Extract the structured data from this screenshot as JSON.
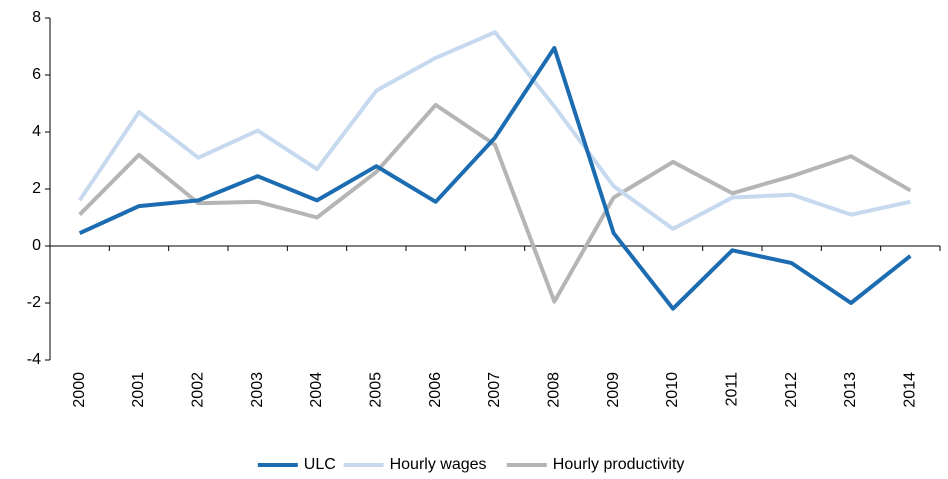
{
  "chart_data": {
    "type": "line",
    "categories": [
      "2000",
      "2001",
      "2002",
      "2003",
      "2004",
      "2005",
      "2006",
      "2007",
      "2008",
      "2009",
      "2010",
      "2011",
      "2012",
      "2013",
      "2014"
    ],
    "series": [
      {
        "name": "ULC",
        "color": "#1b6cb0",
        "values": [
          0.45,
          1.4,
          1.6,
          2.45,
          1.6,
          2.8,
          1.55,
          3.8,
          6.95,
          0.45,
          -2.2,
          -0.15,
          -0.6,
          -2.0,
          -0.35
        ]
      },
      {
        "name": "Hourly wages",
        "color": "#c6d9ef",
        "values": [
          1.6,
          4.7,
          3.1,
          4.05,
          2.7,
          5.45,
          6.6,
          7.5,
          4.9,
          2.1,
          0.6,
          1.7,
          1.8,
          1.1,
          1.55
        ]
      },
      {
        "name": "Hourly productivity",
        "color": "#b5b5b5",
        "values": [
          1.1,
          3.2,
          1.5,
          1.55,
          1.0,
          2.6,
          4.95,
          3.55,
          -1.95,
          1.7,
          2.95,
          1.85,
          2.45,
          3.15,
          1.95
        ]
      }
    ],
    "ylim": [
      -4,
      8
    ],
    "yticks": [
      -4,
      -2,
      0,
      2,
      4,
      6,
      8
    ],
    "grid": false,
    "legend": "bottom"
  }
}
